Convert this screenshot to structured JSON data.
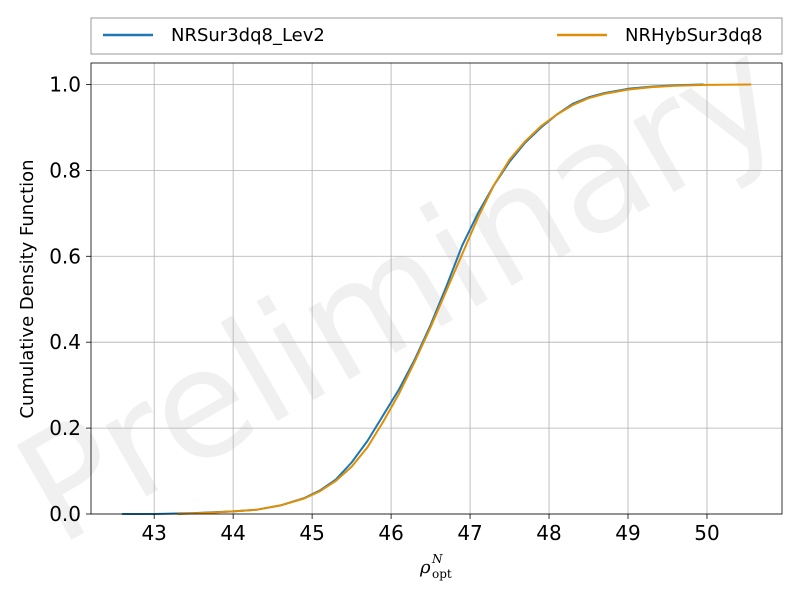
{
  "chart_data": {
    "type": "line",
    "title": "",
    "xlabel": {
      "main": "ρ",
      "sup": "N",
      "sub": "opt"
    },
    "ylabel": "Cumulative Density Function",
    "xlim": [
      42.2,
      50.95
    ],
    "ylim": [
      0,
      1.05
    ],
    "xticks": [
      43,
      44,
      45,
      46,
      47,
      48,
      49,
      50
    ],
    "yticks": [
      0.0,
      0.2,
      0.4,
      0.6,
      0.8,
      1.0
    ],
    "xtick_labels": [
      "43",
      "44",
      "45",
      "46",
      "47",
      "48",
      "49",
      "50"
    ],
    "ytick_labels": [
      "0.0",
      "0.2",
      "0.4",
      "0.6",
      "0.8",
      "1.0"
    ],
    "grid": true,
    "legend_placement": "top, outside, two columns",
    "watermark": "Preliminary",
    "series": [
      {
        "name": "NRSur3dq8_Lev2",
        "color": "#1f77b4",
        "x": [
          42.6,
          43.0,
          43.5,
          44.0,
          44.3,
          44.6,
          44.9,
          45.1,
          45.3,
          45.5,
          45.7,
          45.9,
          46.1,
          46.3,
          46.5,
          46.7,
          46.9,
          47.1,
          47.3,
          47.5,
          47.7,
          47.9,
          48.1,
          48.3,
          48.5,
          48.7,
          49.0,
          49.3,
          49.6,
          49.95
        ],
        "y": [
          0.0,
          0.0,
          0.002,
          0.006,
          0.01,
          0.02,
          0.037,
          0.055,
          0.08,
          0.12,
          0.17,
          0.23,
          0.29,
          0.36,
          0.44,
          0.53,
          0.625,
          0.7,
          0.765,
          0.82,
          0.865,
          0.9,
          0.93,
          0.955,
          0.97,
          0.98,
          0.99,
          0.995,
          0.998,
          1.0
        ]
      },
      {
        "name": "NRHybSur3dq8",
        "color": "#de8f05",
        "x": [
          43.3,
          43.7,
          44.0,
          44.3,
          44.6,
          44.9,
          45.1,
          45.3,
          45.5,
          45.7,
          45.9,
          46.1,
          46.3,
          46.5,
          46.7,
          46.9,
          47.1,
          47.3,
          47.5,
          47.7,
          47.9,
          48.1,
          48.3,
          48.5,
          48.7,
          49.0,
          49.3,
          49.6,
          50.0,
          50.55
        ],
        "y": [
          0.0,
          0.003,
          0.006,
          0.01,
          0.02,
          0.036,
          0.053,
          0.077,
          0.11,
          0.155,
          0.215,
          0.28,
          0.355,
          0.435,
          0.52,
          0.605,
          0.69,
          0.765,
          0.825,
          0.868,
          0.903,
          0.93,
          0.952,
          0.968,
          0.978,
          0.988,
          0.994,
          0.997,
          0.999,
          1.0
        ]
      }
    ]
  }
}
